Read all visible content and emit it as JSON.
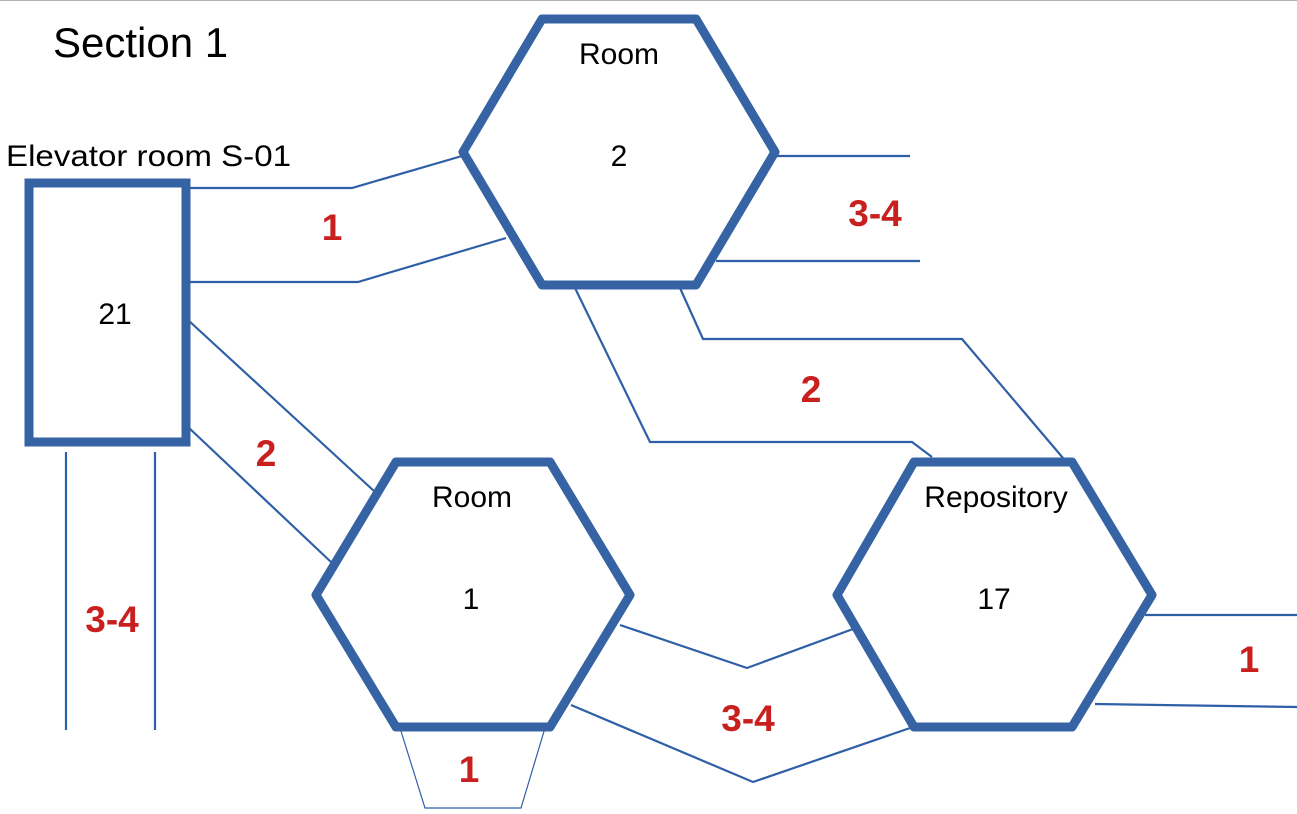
{
  "title": "Section 1",
  "colors": {
    "shape": "#3563a3",
    "corridor": "#2f5fa6",
    "weight": "#c8201e",
    "text": "#000000"
  },
  "nodes": [
    {
      "id": "elevator",
      "shape": "rectangle",
      "caption": "Elevator room S-01",
      "number": "21"
    },
    {
      "id": "room-2",
      "shape": "hexagon",
      "caption": "Room",
      "number": "2"
    },
    {
      "id": "room-1",
      "shape": "hexagon",
      "caption": "Room",
      "number": "1"
    },
    {
      "id": "repository",
      "shape": "hexagon",
      "caption": "Repository",
      "number": "17"
    }
  ],
  "corridors": [
    {
      "from": "elevator",
      "to": "room-2",
      "weight": "1"
    },
    {
      "from": "elevator",
      "to": "room-1",
      "weight": "2"
    },
    {
      "from": "room-2",
      "to": "repository",
      "weight": "2"
    },
    {
      "from": "room-1",
      "to": "repository",
      "weight": "3-4"
    },
    {
      "from": "room-2",
      "to": "offpage-right",
      "weight": "3-4"
    },
    {
      "from": "elevator",
      "to": "offpage-bottom",
      "weight": "3-4"
    },
    {
      "from": "room-1",
      "to": "offpage-bottom",
      "weight": "1"
    },
    {
      "from": "repository",
      "to": "offpage-right",
      "weight": "1"
    }
  ]
}
